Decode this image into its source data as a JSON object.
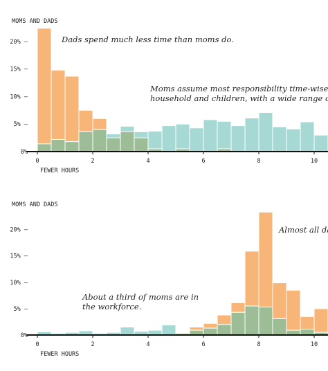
{
  "colors": {
    "dads": "#f7b678",
    "moms": "#a6d8d4",
    "overlap": "#9dbd97",
    "axis": "#111111",
    "divider": "#ffffff"
  },
  "chart_data": [
    {
      "type": "bar",
      "title": "MOMS AND DADS",
      "xlabel": "FEWER HOURS",
      "ylabel": "",
      "xlim": [
        -0.3,
        10.5
      ],
      "ylim": [
        0,
        22.5
      ],
      "bin_width": 0.5,
      "x_ticks": [
        {
          "value": 0,
          "label": "0"
        },
        {
          "value": 2,
          "label": "2"
        },
        {
          "value": 4,
          "label": "4"
        },
        {
          "value": 6,
          "label": "6"
        },
        {
          "value": 8,
          "label": "8"
        },
        {
          "value": 10,
          "label": "10"
        }
      ],
      "y_ticks": [
        {
          "value": 0,
          "label": "0%"
        },
        {
          "value": 5,
          "label": "5% –"
        },
        {
          "value": 10,
          "label": "10% –"
        },
        {
          "value": 15,
          "label": "15% –"
        },
        {
          "value": 20,
          "label": "20% –"
        }
      ],
      "series": [
        {
          "key": "dads",
          "values": [
            {
              "x": 0,
              "y": 22.4
            },
            {
              "x": 0.5,
              "y": 14.8
            },
            {
              "x": 1,
              "y": 13.7
            },
            {
              "x": 1.5,
              "y": 7.5
            },
            {
              "x": 2,
              "y": 6.0
            },
            {
              "x": 2.5,
              "y": 2.5
            },
            {
              "x": 3,
              "y": 3.6
            },
            {
              "x": 3.5,
              "y": 2.5
            },
            {
              "x": 4,
              "y": 0.5
            },
            {
              "x": 5,
              "y": 0.5
            },
            {
              "x": 6.5,
              "y": 0.5
            }
          ]
        },
        {
          "key": "moms",
          "values": [
            {
              "x": 0,
              "y": 1.4
            },
            {
              "x": 0.5,
              "y": 2.2
            },
            {
              "x": 1,
              "y": 1.8
            },
            {
              "x": 1.5,
              "y": 3.6
            },
            {
              "x": 2,
              "y": 4.0
            },
            {
              "x": 2.5,
              "y": 3.2
            },
            {
              "x": 3,
              "y": 4.6
            },
            {
              "x": 3.5,
              "y": 3.6
            },
            {
              "x": 4,
              "y": 3.7
            },
            {
              "x": 4.5,
              "y": 4.7
            },
            {
              "x": 5,
              "y": 5.0
            },
            {
              "x": 5.5,
              "y": 4.3
            },
            {
              "x": 6,
              "y": 5.8
            },
            {
              "x": 6.5,
              "y": 5.5
            },
            {
              "x": 7,
              "y": 4.7
            },
            {
              "x": 7.5,
              "y": 6.1
            },
            {
              "x": 8,
              "y": 7.1
            },
            {
              "x": 8.5,
              "y": 4.5
            },
            {
              "x": 9,
              "y": 4.1
            },
            {
              "x": 9.5,
              "y": 5.4
            },
            {
              "x": 10,
              "y": 3.0
            }
          ]
        }
      ],
      "annotations": [
        {
          "id": "a1",
          "lines": [
            "Dads spend much less time than moms do."
          ]
        },
        {
          "id": "a2",
          "lines": [
            "Moms assume most responsibility time-wise with",
            "household and children, with a wide range of hou"
          ]
        }
      ]
    },
    {
      "type": "bar",
      "title": "MOMS AND DADS",
      "xlabel": "FEWER HOURS",
      "ylabel": "",
      "xlim": [
        -0.3,
        10.5
      ],
      "ylim": [
        0,
        23.5
      ],
      "bin_width": 0.5,
      "x_ticks": [
        {
          "value": 0,
          "label": "0"
        },
        {
          "value": 2,
          "label": "2"
        },
        {
          "value": 4,
          "label": "4"
        },
        {
          "value": 6,
          "label": "6"
        },
        {
          "value": 8,
          "label": "8"
        },
        {
          "value": 10,
          "label": "10"
        }
      ],
      "y_ticks": [
        {
          "value": 0,
          "label": "0%"
        },
        {
          "value": 5,
          "label": "5% –"
        },
        {
          "value": 10,
          "label": "10% –"
        },
        {
          "value": 15,
          "label": "15% –"
        },
        {
          "value": 20,
          "label": "20% –"
        }
      ],
      "series": [
        {
          "key": "dads",
          "values": [
            {
              "x": 5,
              "y": 0.3
            },
            {
              "x": 5.5,
              "y": 1.5
            },
            {
              "x": 6,
              "y": 2.2
            },
            {
              "x": 6.5,
              "y": 3.8
            },
            {
              "x": 7,
              "y": 6.1
            },
            {
              "x": 7.5,
              "y": 15.9
            },
            {
              "x": 8,
              "y": 23.3
            },
            {
              "x": 8.5,
              "y": 9.9
            },
            {
              "x": 9,
              "y": 8.5
            },
            {
              "x": 9.5,
              "y": 3.5
            },
            {
              "x": 10,
              "y": 5.0
            }
          ]
        },
        {
          "key": "moms",
          "values": [
            {
              "x": 0,
              "y": 0.6
            },
            {
              "x": 0.5,
              "y": 0.3
            },
            {
              "x": 1,
              "y": 0.5
            },
            {
              "x": 1.5,
              "y": 0.8
            },
            {
              "x": 2,
              "y": 0.3
            },
            {
              "x": 2.5,
              "y": 0.5
            },
            {
              "x": 3,
              "y": 1.5
            },
            {
              "x": 3.5,
              "y": 0.7
            },
            {
              "x": 4,
              "y": 0.9
            },
            {
              "x": 4.5,
              "y": 1.9
            },
            {
              "x": 5,
              "y": 0.4
            },
            {
              "x": 5.5,
              "y": 0.9
            },
            {
              "x": 6,
              "y": 1.3
            },
            {
              "x": 6.5,
              "y": 2.0
            },
            {
              "x": 7,
              "y": 4.3
            },
            {
              "x": 7.5,
              "y": 5.5
            },
            {
              "x": 8,
              "y": 5.3
            },
            {
              "x": 8.5,
              "y": 3.1
            },
            {
              "x": 9,
              "y": 0.9
            },
            {
              "x": 9.5,
              "y": 1.1
            },
            {
              "x": 10,
              "y": 0.5
            }
          ]
        }
      ],
      "annotations": [
        {
          "id": "b1",
          "lines": [
            "Almost all da"
          ]
        },
        {
          "id": "b2",
          "lines": [
            "About a third of moms are in",
            "the workforce."
          ]
        }
      ]
    }
  ]
}
